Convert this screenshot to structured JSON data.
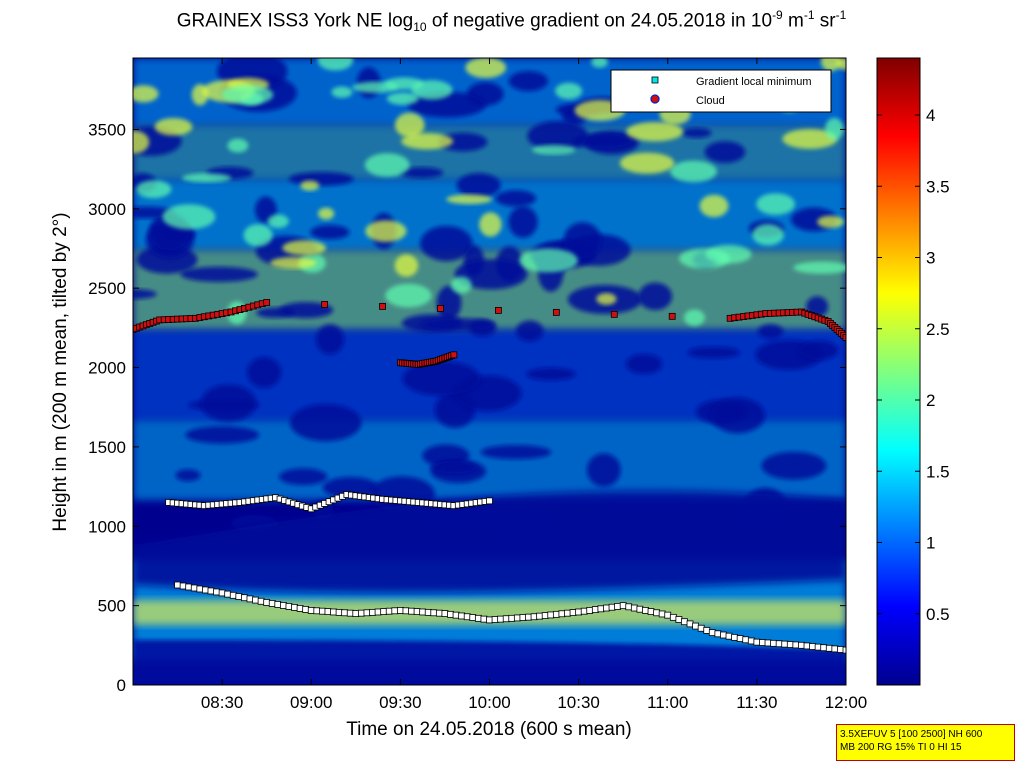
{
  "title": {
    "prefix": "GRAINEX ISS3 York NE log",
    "sub": "10",
    "mid": " of negative gradient on 24.05.2018 in 10",
    "exp1": "-9",
    "unit1": " m",
    "exp2": "-1",
    "unit2": " sr",
    "exp3": "-1"
  },
  "footnote": {
    "line1": "3.5XEFUV 5 [100 2500] NH 600",
    "line2": "MB 200 RG 15% TI 0 HI 15"
  },
  "colors": {
    "colormap": "jet",
    "minimum_marker": "#ffffff",
    "cloud_marker": "#d01010",
    "legend_minimum_marker": "#00e8e8"
  },
  "chart_data": {
    "type": "heatmap",
    "xlabel": "Time on 24.05.2018 (600 s mean)",
    "ylabel": "Height in m (200 m mean, tilted by 2°)",
    "x_ticks": [
      "08:30",
      "09:00",
      "09:30",
      "10:00",
      "10:30",
      "11:00",
      "11:30",
      "12:00"
    ],
    "y_ticks": [
      "0",
      "500",
      "1000",
      "1500",
      "2000",
      "2500",
      "3000",
      "3500"
    ],
    "xlim_hours": [
      8.0,
      12.0
    ],
    "ylim": [
      0,
      3950
    ],
    "colorbar": {
      "colormap": "jet",
      "range": [
        0,
        4.4
      ],
      "ticks": [
        "0.5",
        "1",
        "1.5",
        "2",
        "2.5",
        "3",
        "3.5",
        "4"
      ]
    },
    "legend": {
      "position": "top-right",
      "entries": [
        "Gradient local minimum",
        "Cloud"
      ]
    },
    "series": [
      {
        "name": "Gradient local minimum",
        "layer": "boundary-layer-low",
        "x_hours": [
          8.25,
          8.5,
          8.75,
          9.0,
          9.25,
          9.5,
          9.75,
          10.0,
          10.25,
          10.5,
          10.75,
          11.0,
          11.25,
          11.5,
          11.75,
          12.0
        ],
        "y": [
          630,
          580,
          520,
          470,
          450,
          470,
          450,
          410,
          430,
          460,
          500,
          440,
          330,
          270,
          250,
          220
        ]
      },
      {
        "name": "Gradient local minimum",
        "layer": "residual-layer",
        "x_hours": [
          8.2,
          8.4,
          8.6,
          8.8,
          9.0,
          9.2,
          9.4,
          9.6,
          9.8,
          10.0
        ],
        "y": [
          1150,
          1130,
          1150,
          1180,
          1110,
          1200,
          1170,
          1150,
          1130,
          1160
        ]
      },
      {
        "name": "Cloud",
        "layer": "cloud-layer-2300",
        "x_hours": [
          8.0,
          8.15,
          8.35,
          8.55,
          8.75,
          11.35,
          11.55,
          11.75,
          11.9,
          12.0
        ],
        "y": [
          2240,
          2300,
          2310,
          2350,
          2410,
          2310,
          2340,
          2350,
          2290,
          2190
        ]
      },
      {
        "name": "Cloud",
        "layer": "cloud-layer-2000",
        "x_hours": [
          9.5,
          9.6,
          9.7,
          9.8
        ],
        "y": [
          2030,
          2020,
          2040,
          2080
        ]
      }
    ]
  }
}
